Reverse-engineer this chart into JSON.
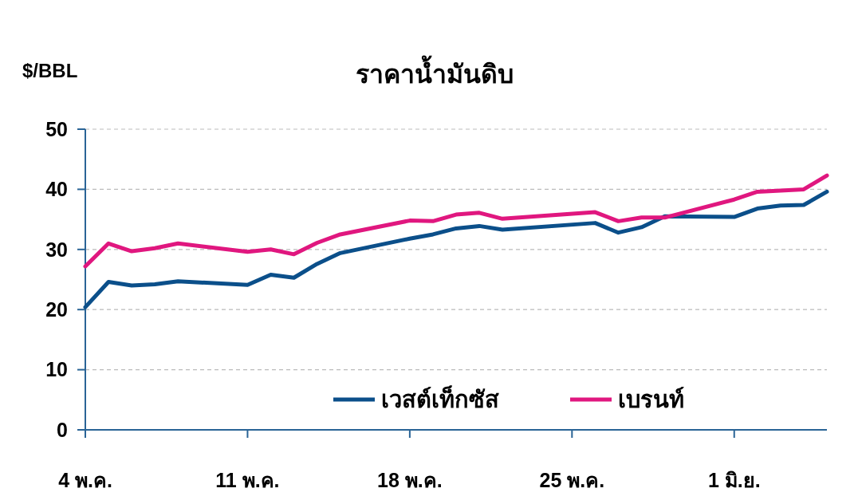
{
  "chart_data": {
    "type": "line",
    "title": "ราคาน้ำมันดิบ",
    "ylabel": "$/BBL",
    "x": [
      "--05-04",
      "--05-05",
      "--05-06",
      "--05-07",
      "--05-08",
      "--05-11",
      "--05-12",
      "--05-13",
      "--05-14",
      "--05-15",
      "--05-18",
      "--05-19",
      "--05-20",
      "--05-21",
      "--05-22",
      "--05-26",
      "--05-27",
      "--05-28",
      "--05-29",
      "--06-01",
      "--06-02",
      "--06-03",
      "--06-04",
      "--06-05"
    ],
    "series": [
      {
        "name": "เวสต์เท็กซัส",
        "color": "#0b4f8a",
        "values": [
          20.4,
          24.6,
          24.0,
          24.2,
          24.7,
          24.1,
          25.8,
          25.3,
          27.6,
          29.4,
          31.8,
          32.5,
          33.5,
          33.9,
          33.3,
          34.4,
          32.8,
          33.7,
          35.5,
          35.4,
          36.8,
          37.3,
          37.4,
          39.6
        ]
      },
      {
        "name": "เบรนท์",
        "color": "#e0177f",
        "values": [
          27.2,
          31.0,
          29.7,
          30.2,
          31.0,
          29.6,
          30.0,
          29.2,
          31.1,
          32.5,
          34.8,
          34.7,
          35.8,
          36.1,
          35.1,
          36.2,
          34.7,
          35.3,
          35.3,
          38.3,
          39.6,
          39.8,
          40.0,
          42.3
        ]
      }
    ],
    "xlim": [
      "--05-04",
      "--06-05"
    ],
    "xticks": [
      {
        "value": "--05-04",
        "label": "4 พ.ค."
      },
      {
        "value": "--05-11",
        "label": "11 พ.ค."
      },
      {
        "value": "--05-18",
        "label": "18 พ.ค."
      },
      {
        "value": "--05-25",
        "label": "25 พ.ค."
      },
      {
        "value": "--06-01",
        "label": "1 มิ.ย."
      }
    ],
    "ylim": [
      0,
      50
    ],
    "yticks": [
      0,
      10,
      20,
      30,
      40,
      50
    ],
    "grid": "y",
    "legend": "bottom right",
    "marker": "none",
    "line_style": "solid"
  }
}
